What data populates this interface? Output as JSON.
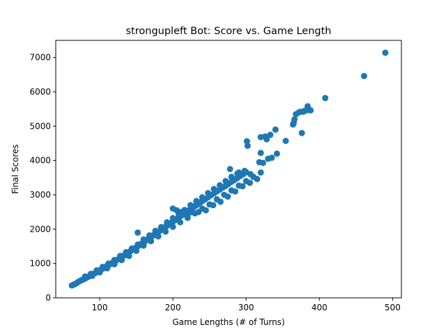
{
  "chart_data": {
    "type": "scatter",
    "title": "strongupleft Bot: Score vs. Game Length",
    "xlabel": "Game Lengths (# of Turns)",
    "ylabel": "Final Scores",
    "xlim": [
      40,
      512
    ],
    "ylim": [
      0,
      7500
    ],
    "x_ticks": [
      100,
      200,
      300,
      400,
      500
    ],
    "y_ticks": [
      0,
      1000,
      2000,
      3000,
      4000,
      5000,
      6000,
      7000
    ],
    "grid": false,
    "marker_color": "#1f77b4",
    "series": [
      {
        "points": [
          [
            62,
            360
          ],
          [
            64,
            380
          ],
          [
            66,
            400
          ],
          [
            68,
            420
          ],
          [
            70,
            450
          ],
          [
            72,
            480
          ],
          [
            74,
            500
          ],
          [
            76,
            520
          ],
          [
            78,
            540
          ],
          [
            80,
            560
          ],
          [
            82,
            590
          ],
          [
            84,
            610
          ],
          [
            86,
            630
          ],
          [
            88,
            660
          ],
          [
            90,
            680
          ],
          [
            92,
            700
          ],
          [
            94,
            720
          ],
          [
            96,
            750
          ],
          [
            98,
            770
          ],
          [
            100,
            800
          ],
          [
            102,
            820
          ],
          [
            104,
            850
          ],
          [
            106,
            870
          ],
          [
            108,
            900
          ],
          [
            110,
            930
          ],
          [
            112,
            950
          ],
          [
            114,
            980
          ],
          [
            116,
            1000
          ],
          [
            118,
            1030
          ],
          [
            120,
            1050
          ],
          [
            122,
            1080
          ],
          [
            124,
            1110
          ],
          [
            126,
            1130
          ],
          [
            128,
            1160
          ],
          [
            130,
            1190
          ],
          [
            132,
            1220
          ],
          [
            134,
            1240
          ],
          [
            136,
            1270
          ],
          [
            138,
            1300
          ],
          [
            140,
            1330
          ],
          [
            142,
            1360
          ],
          [
            144,
            1390
          ],
          [
            146,
            1420
          ],
          [
            148,
            1440
          ],
          [
            150,
            1470
          ],
          [
            152,
            1500
          ],
          [
            154,
            1530
          ],
          [
            156,
            1560
          ],
          [
            158,
            1590
          ],
          [
            160,
            1620
          ],
          [
            162,
            1650
          ],
          [
            164,
            1680
          ],
          [
            166,
            1710
          ],
          [
            168,
            1740
          ],
          [
            170,
            1770
          ],
          [
            172,
            1800
          ],
          [
            174,
            1830
          ],
          [
            176,
            1860
          ],
          [
            178,
            1890
          ],
          [
            180,
            1920
          ],
          [
            182,
            1950
          ],
          [
            184,
            1980
          ],
          [
            186,
            2010
          ],
          [
            188,
            2040
          ],
          [
            190,
            2070
          ],
          [
            192,
            2100
          ],
          [
            194,
            2130
          ],
          [
            196,
            2160
          ],
          [
            198,
            2190
          ],
          [
            200,
            2220
          ],
          [
            202,
            2250
          ],
          [
            204,
            2280
          ],
          [
            206,
            2310
          ],
          [
            208,
            2340
          ],
          [
            210,
            2370
          ],
          [
            212,
            2400
          ],
          [
            214,
            2430
          ],
          [
            216,
            2460
          ],
          [
            218,
            2490
          ],
          [
            220,
            2520
          ],
          [
            222,
            2550
          ],
          [
            224,
            2580
          ],
          [
            226,
            2610
          ],
          [
            228,
            2640
          ],
          [
            230,
            2670
          ],
          [
            232,
            2700
          ],
          [
            234,
            2730
          ],
          [
            236,
            2760
          ],
          [
            238,
            2790
          ],
          [
            240,
            2820
          ],
          [
            244,
            2870
          ],
          [
            248,
            2930
          ],
          [
            252,
            2990
          ],
          [
            256,
            3040
          ],
          [
            260,
            3100
          ],
          [
            264,
            3150
          ],
          [
            268,
            3210
          ],
          [
            272,
            3260
          ],
          [
            276,
            3320
          ],
          [
            280,
            3380
          ],
          [
            284,
            3430
          ],
          [
            288,
            3490
          ],
          [
            292,
            3550
          ],
          [
            296,
            3600
          ],
          [
            300,
            3660
          ],
          [
            80,
            620
          ],
          [
            88,
            700
          ],
          [
            96,
            800
          ],
          [
            104,
            900
          ],
          [
            112,
            1000
          ],
          [
            120,
            1100
          ],
          [
            128,
            1220
          ],
          [
            136,
            1330
          ],
          [
            144,
            1440
          ],
          [
            152,
            1550
          ],
          [
            160,
            1700
          ],
          [
            168,
            1820
          ],
          [
            176,
            1950
          ],
          [
            184,
            2060
          ],
          [
            192,
            2200
          ],
          [
            200,
            2320
          ],
          [
            208,
            2450
          ],
          [
            216,
            2560
          ],
          [
            224,
            2700
          ],
          [
            232,
            2820
          ],
          [
            240,
            2930
          ],
          [
            248,
            3050
          ],
          [
            256,
            3170
          ],
          [
            264,
            3280
          ],
          [
            272,
            3400
          ],
          [
            280,
            3520
          ],
          [
            288,
            3620
          ],
          [
            90,
            640
          ],
          [
            100,
            740
          ],
          [
            110,
            860
          ],
          [
            120,
            980
          ],
          [
            130,
            1100
          ],
          [
            140,
            1220
          ],
          [
            150,
            1370
          ],
          [
            160,
            1520
          ],
          [
            170,
            1650
          ],
          [
            180,
            1790
          ],
          [
            190,
            1930
          ],
          [
            200,
            2070
          ],
          [
            210,
            2200
          ],
          [
            220,
            2330
          ],
          [
            230,
            2460
          ],
          [
            240,
            2600
          ],
          [
            250,
            2720
          ],
          [
            260,
            2870
          ],
          [
            270,
            3000
          ],
          [
            280,
            3130
          ],
          [
            290,
            3270
          ],
          [
            300,
            3400
          ],
          [
            310,
            3520
          ],
          [
            320,
            3650
          ],
          [
            152,
            1900
          ],
          [
            200,
            2600
          ],
          [
            205,
            2550
          ],
          [
            210,
            2500
          ],
          [
            215,
            2450
          ],
          [
            220,
            2420
          ],
          [
            225,
            2500
          ],
          [
            235,
            2500
          ],
          [
            245,
            2550
          ],
          [
            255,
            2700
          ],
          [
            265,
            2800
          ],
          [
            275,
            2950
          ],
          [
            285,
            3100
          ],
          [
            295,
            3250
          ],
          [
            305,
            3350
          ],
          [
            315,
            3460
          ],
          [
            278,
            3750
          ],
          [
            290,
            3650
          ],
          [
            298,
            3700
          ],
          [
            306,
            3600
          ],
          [
            301,
            4560
          ],
          [
            302,
            4430
          ],
          [
            318,
            3950
          ],
          [
            320,
            4680
          ],
          [
            323,
            3930
          ],
          [
            326,
            4700
          ],
          [
            328,
            4620
          ],
          [
            330,
            4050
          ],
          [
            333,
            4750
          ],
          [
            335,
            4080
          ],
          [
            340,
            4900
          ],
          [
            342,
            4200
          ],
          [
            320,
            4220
          ],
          [
            354,
            4570
          ],
          [
            364,
            5050
          ],
          [
            365,
            5100
          ],
          [
            366,
            5200
          ],
          [
            368,
            5350
          ],
          [
            372,
            5400
          ],
          [
            374,
            5420
          ],
          [
            376,
            4800
          ],
          [
            378,
            5420
          ],
          [
            380,
            5450
          ],
          [
            382,
            5460
          ],
          [
            384,
            5580
          ],
          [
            386,
            5470
          ],
          [
            388,
            5460
          ],
          [
            408,
            5820
          ],
          [
            461,
            6460
          ],
          [
            490,
            7140
          ]
        ]
      }
    ]
  }
}
